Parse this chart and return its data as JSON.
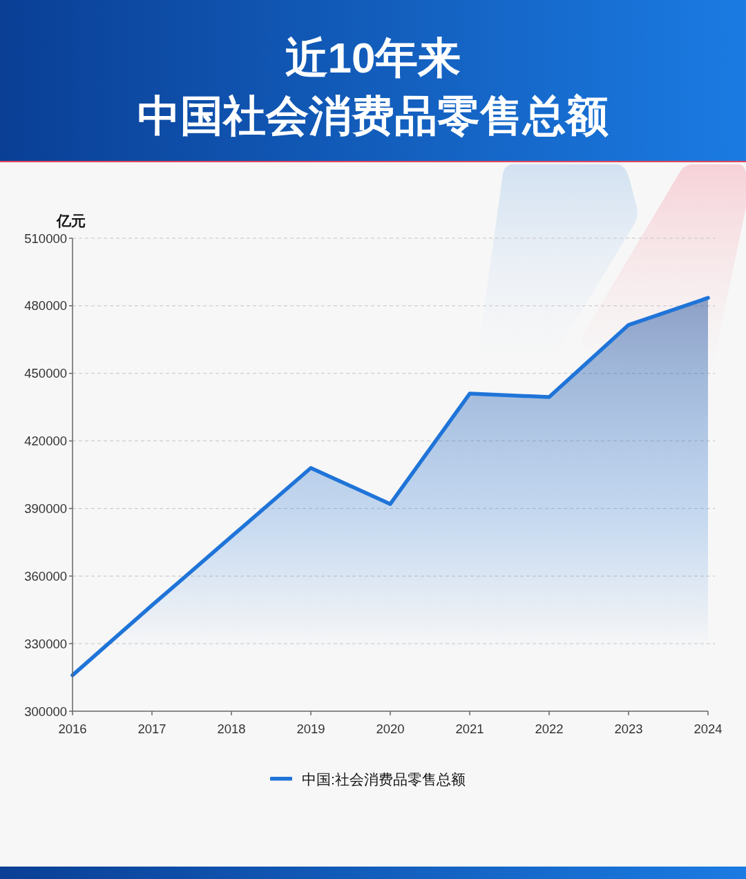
{
  "chart_data": {
    "type": "area",
    "title": "近10年来",
    "subtitle": "中国社会消费品零售总额",
    "ylabel": "亿元",
    "categories": [
      "2016",
      "2017",
      "2018",
      "2019",
      "2020",
      "2021",
      "2022",
      "2023",
      "2024"
    ],
    "series": [
      {
        "name": "中国:社会消费品零售总额",
        "color": "#1f74d8",
        "values": [
          316000,
          347000,
          377500,
          408000,
          392000,
          441000,
          439500,
          471500,
          483500
        ]
      }
    ],
    "ylim": [
      300000,
      510000
    ],
    "yticks": [
      300000,
      330000,
      360000,
      390000,
      420000,
      450000,
      480000,
      510000
    ],
    "grid": "y",
    "legend": "bottom"
  }
}
